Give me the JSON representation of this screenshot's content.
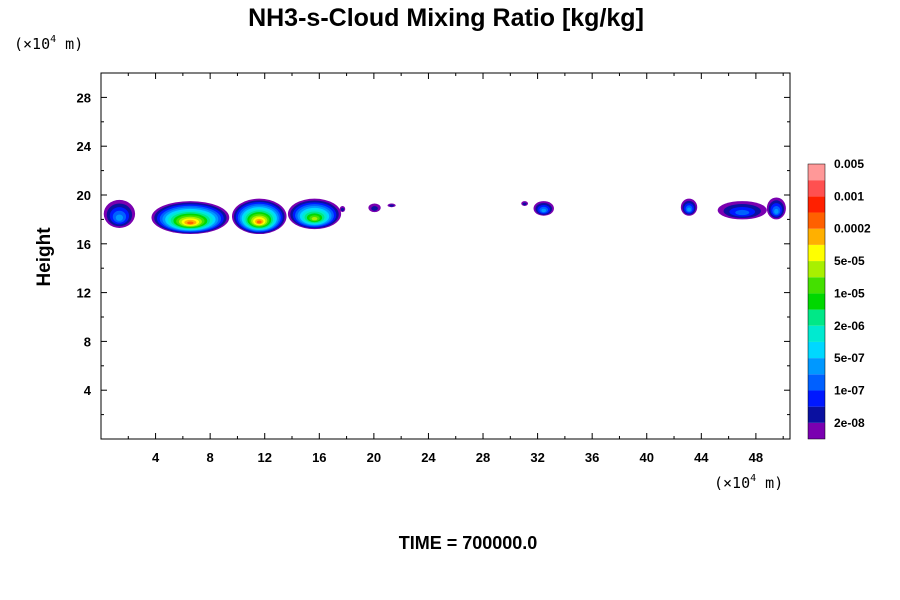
{
  "chart_data": {
    "type": "heatmap",
    "title": "NH3-s-Cloud Mixing Ratio [kg/kg]",
    "ylabel": "Height",
    "y_unit_prefix": "(×10",
    "y_unit_exp": "4",
    "y_unit_suffix": " m)",
    "x_unit_prefix": "(×10",
    "x_unit_exp": "4",
    "x_unit_suffix": " m)",
    "xlim": [
      0,
      50.5
    ],
    "ylim": [
      0,
      30
    ],
    "xticks": [
      4,
      8,
      12,
      16,
      20,
      24,
      28,
      32,
      36,
      40,
      44,
      48
    ],
    "yticks": [
      4,
      8,
      12,
      16,
      20,
      24,
      28
    ],
    "time_label": "TIME = 700000.0",
    "colorbar": {
      "colors": [
        "#7a00b0",
        "#0a10a0",
        "#0018ff",
        "#0060ff",
        "#0098ff",
        "#00d8ff",
        "#00ead0",
        "#00e887",
        "#00d800",
        "#44e000",
        "#a8f000",
        "#ffff00",
        "#ffb000",
        "#ff6000",
        "#ff2000",
        "#ff5050",
        "#ff9898"
      ],
      "labels": [
        "2e-08",
        "1e-07",
        "5e-07",
        "2e-06",
        "1e-05",
        "5e-05",
        "0.0002",
        "0.001",
        "0.005"
      ]
    },
    "cloud_blobs": [
      {
        "x": [
          0.2,
          2.5
        ],
        "y": [
          17.3,
          19.6
        ],
        "peak": 2e-07
      },
      {
        "x": [
          3.7,
          9.4
        ],
        "y": [
          16.8,
          19.5
        ],
        "peak": 0.0002
      },
      {
        "x": [
          9.6,
          13.6
        ],
        "y": [
          16.8,
          19.7
        ],
        "peak": 0.0002
      },
      {
        "x": [
          13.7,
          17.6
        ],
        "y": [
          17.2,
          19.7
        ],
        "peak": 2e-05
      },
      {
        "x": [
          17.5,
          17.9
        ],
        "y": [
          18.6,
          19.1
        ],
        "peak": 2e-08
      },
      {
        "x": [
          19.6,
          20.5
        ],
        "y": [
          18.6,
          19.3
        ],
        "peak": 2e-08
      },
      {
        "x": [
          21.0,
          21.6
        ],
        "y": [
          19.0,
          19.3
        ],
        "peak": 2e-08
      },
      {
        "x": [
          30.8,
          31.3
        ],
        "y": [
          19.1,
          19.5
        ],
        "peak": 2e-08
      },
      {
        "x": [
          31.7,
          33.2
        ],
        "y": [
          18.3,
          19.5
        ],
        "peak": 2e-07
      },
      {
        "x": [
          42.5,
          43.7
        ],
        "y": [
          18.3,
          19.7
        ],
        "peak": 2e-07
      },
      {
        "x": [
          45.2,
          48.8
        ],
        "y": [
          18.0,
          19.5
        ],
        "peak": 1e-07
      },
      {
        "x": [
          48.8,
          50.2
        ],
        "y": [
          18.0,
          19.8
        ],
        "peak": 2e-07
      }
    ]
  }
}
